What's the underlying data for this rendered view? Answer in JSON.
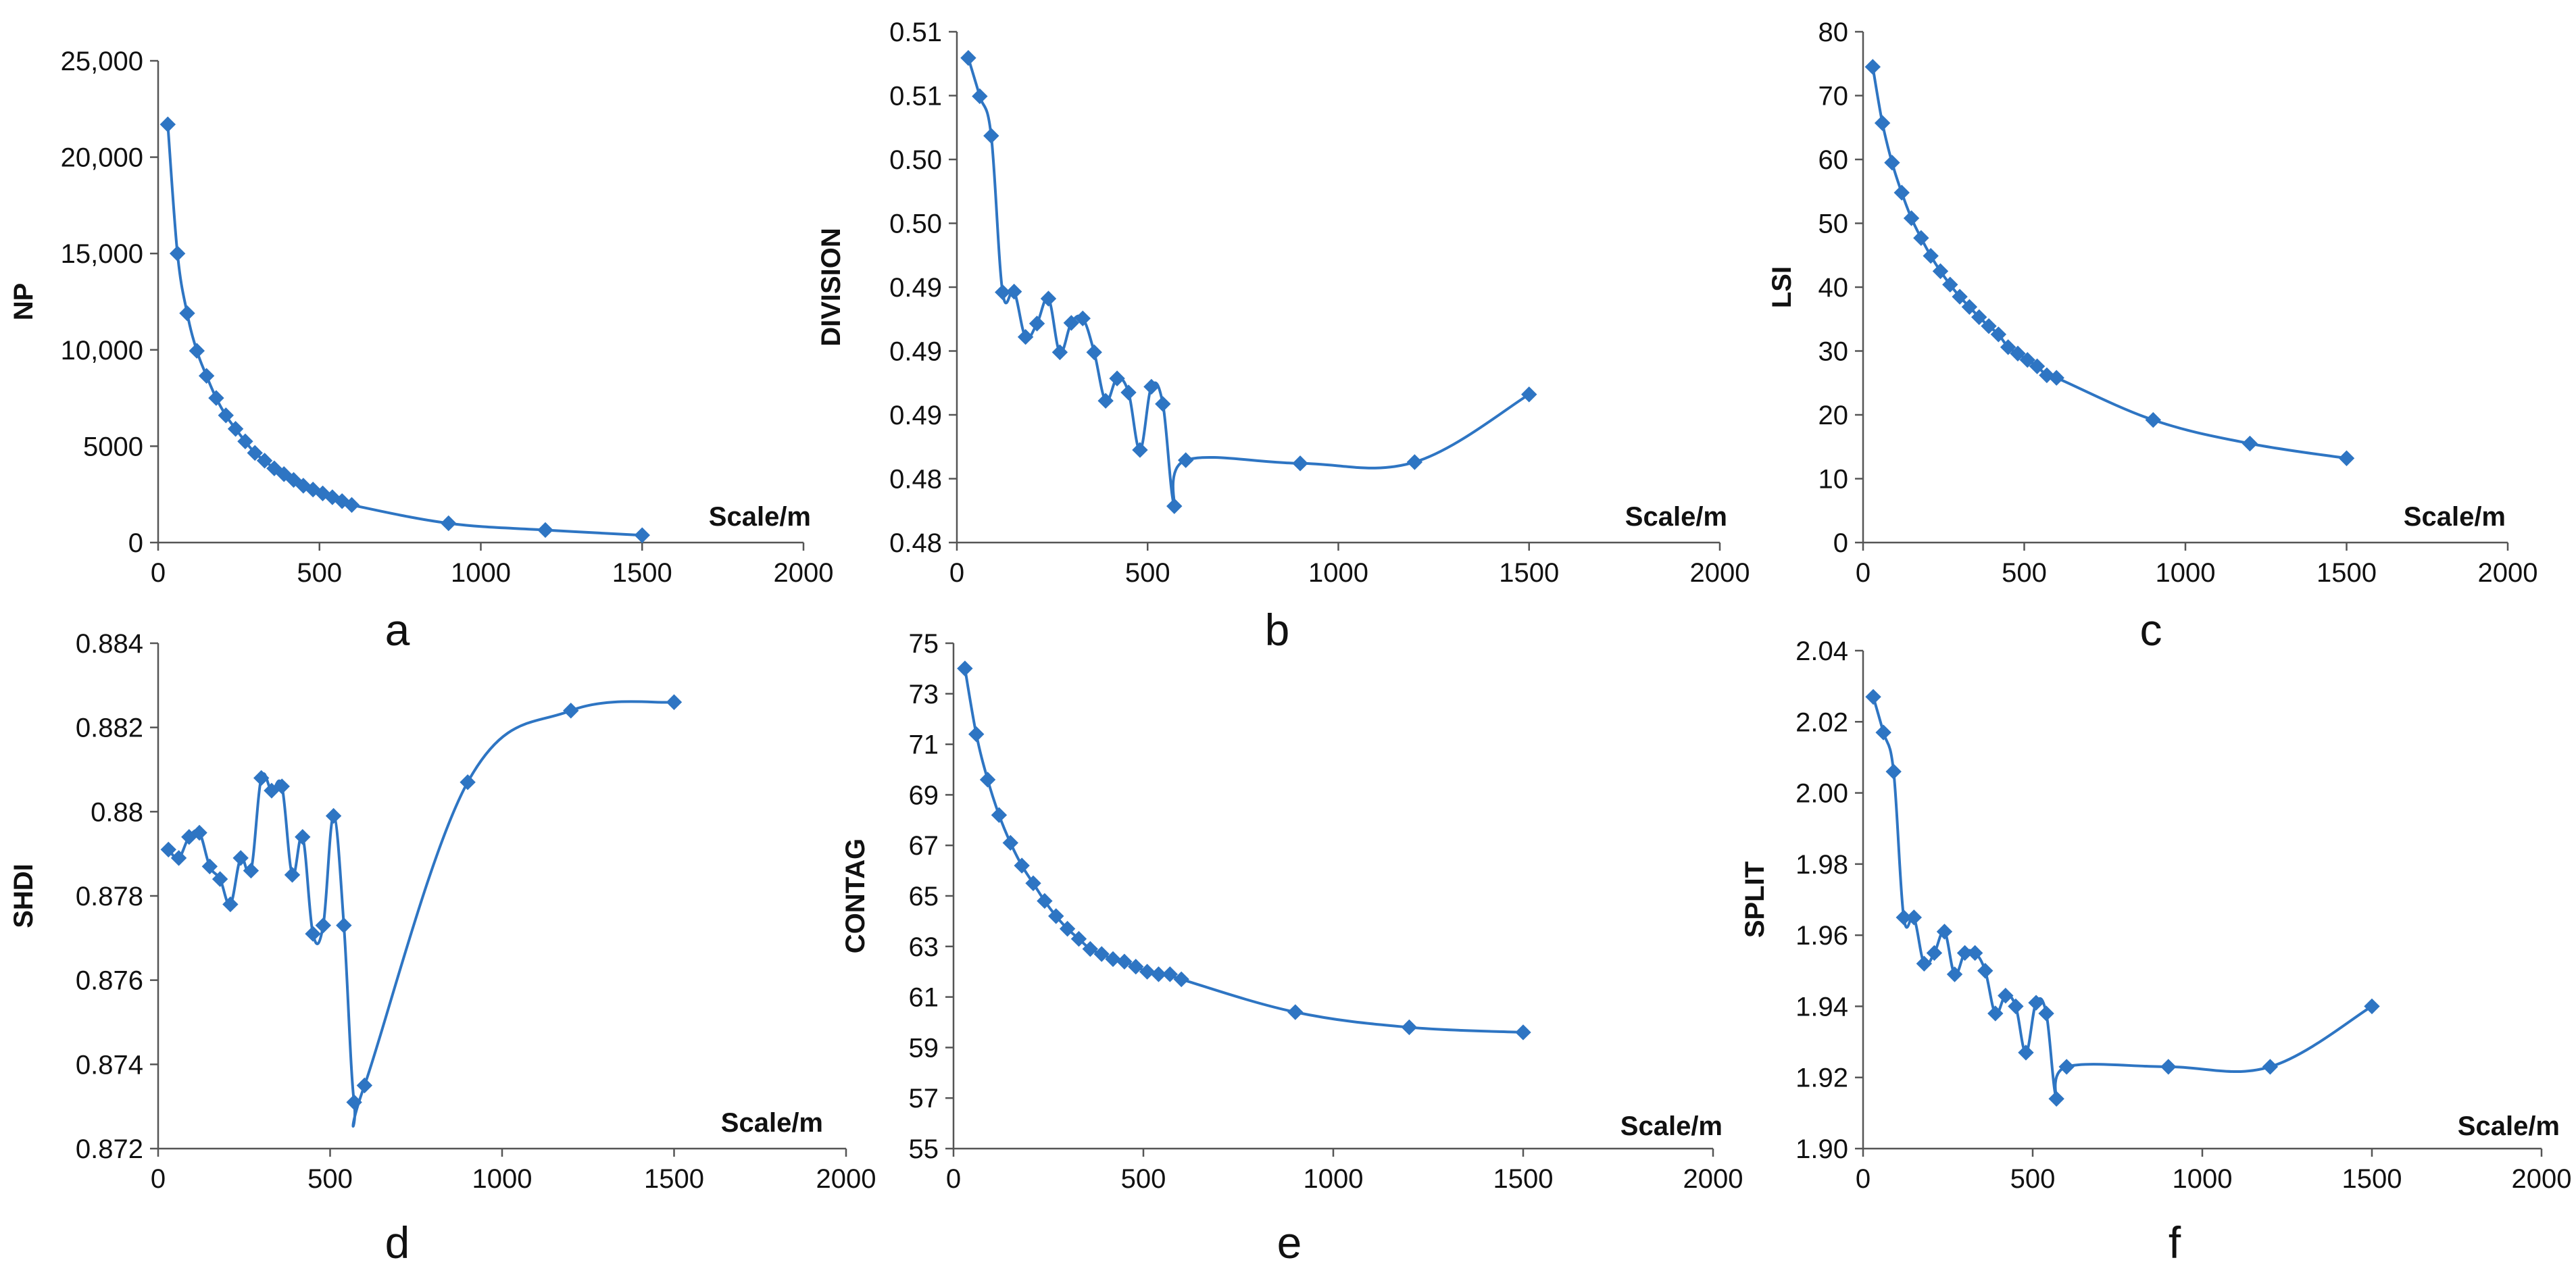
{
  "figure": {
    "series_color": "#2E75C3"
  },
  "chart_data": [
    {
      "id": "a",
      "type": "line",
      "panel_label": "a",
      "ylabel": "NP",
      "xlabel": "Scale/m",
      "xlim": [
        0,
        2000
      ],
      "xticks": [
        0,
        500,
        1000,
        1500,
        2000
      ],
      "xtick_labels": [
        "0",
        "500",
        "1000",
        "1500",
        "2000"
      ],
      "ylim": [
        0,
        25000
      ],
      "yticks": [
        0,
        5000,
        10000,
        15000,
        20000,
        25000
      ],
      "ytick_labels": [
        "0",
        "5000",
        "10,000",
        "15,000",
        "20,000",
        "25,000"
      ],
      "x": [
        30,
        60,
        90,
        120,
        150,
        180,
        210,
        240,
        270,
        300,
        330,
        360,
        390,
        420,
        450,
        480,
        510,
        540,
        570,
        600,
        900,
        1200,
        1500
      ],
      "y": [
        21700,
        15000,
        11900,
        9950,
        8650,
        7500,
        6600,
        5900,
        5250,
        4650,
        4250,
        3850,
        3550,
        3250,
        2950,
        2750,
        2550,
        2350,
        2150,
        1950,
        1000,
        650,
        380
      ]
    },
    {
      "id": "b",
      "type": "line",
      "panel_label": "b",
      "ylabel": "DIVISION",
      "xlabel": "Scale/m",
      "xlim": [
        0,
        2000
      ],
      "xticks": [
        0,
        500,
        1000,
        1500,
        2000
      ],
      "xtick_labels": [
        "0",
        "500",
        "1000",
        "1500",
        "2000"
      ],
      "ylim": [
        0,
        8
      ],
      "yticks": [
        0,
        1,
        2,
        3,
        4,
        5,
        6,
        7,
        8
      ],
      "ytick_labels": [
        "0.48",
        "0.48",
        "0.49",
        "0.49",
        "0.49",
        "0.50",
        "0.50",
        "0.51",
        "0.51"
      ],
      "x": [
        30,
        60,
        90,
        120,
        150,
        180,
        210,
        240,
        270,
        300,
        330,
        360,
        390,
        420,
        450,
        480,
        510,
        540,
        570,
        600,
        900,
        1200,
        1500
      ],
      "y": [
        7.59,
        6.99,
        6.37,
        3.92,
        3.93,
        3.22,
        3.43,
        3.82,
        2.98,
        3.44,
        3.51,
        2.98,
        2.22,
        2.57,
        2.35,
        1.45,
        2.44,
        2.17,
        0.57,
        1.29,
        1.24,
        1.26,
        2.32
      ]
    },
    {
      "id": "c",
      "type": "line",
      "panel_label": "c",
      "ylabel": "LSI",
      "xlabel": "Scale/m",
      "xlim": [
        0,
        2000
      ],
      "xticks": [
        0,
        500,
        1000,
        1500,
        2000
      ],
      "xtick_labels": [
        "0",
        "500",
        "1000",
        "1500",
        "2000"
      ],
      "ylim": [
        0,
        80
      ],
      "yticks": [
        0,
        10,
        20,
        30,
        40,
        50,
        60,
        70,
        80
      ],
      "ytick_labels": [
        "0",
        "10",
        "20",
        "30",
        "40",
        "50",
        "60",
        "70",
        "80"
      ],
      "x": [
        30,
        60,
        90,
        120,
        150,
        180,
        210,
        240,
        270,
        300,
        330,
        360,
        390,
        420,
        450,
        480,
        510,
        540,
        570,
        600,
        900,
        1200,
        1500
      ],
      "y": [
        74.5,
        65.7,
        59.5,
        54.8,
        50.8,
        47.7,
        44.9,
        42.5,
        40.4,
        38.5,
        36.9,
        35.3,
        33.9,
        32.6,
        30.6,
        29.6,
        28.6,
        27.6,
        26.2,
        25.8,
        19.2,
        15.5,
        13.2
      ]
    },
    {
      "id": "d",
      "type": "line",
      "panel_label": "d",
      "ylabel": "SHDI",
      "xlabel": "Scale/m",
      "xlim": [
        0,
        2000
      ],
      "xticks": [
        0,
        500,
        1000,
        1500,
        2000
      ],
      "xtick_labels": [
        "0",
        "500",
        "1000",
        "1500",
        "2000"
      ],
      "ylim": [
        0.872,
        0.884
      ],
      "yticks": [
        0.872,
        0.874,
        0.876,
        0.878,
        0.88,
        0.882,
        0.884
      ],
      "ytick_labels": [
        "0.872",
        "0.874",
        "0.876",
        "0.878",
        "0.88",
        "0.882",
        "0.884"
      ],
      "x": [
        30,
        60,
        90,
        120,
        150,
        180,
        210,
        240,
        270,
        300,
        330,
        360,
        390,
        420,
        450,
        480,
        510,
        540,
        570,
        600,
        900,
        1200,
        1500
      ],
      "y": [
        0.8791,
        0.8789,
        0.8794,
        0.8795,
        0.8787,
        0.8784,
        0.8778,
        0.8789,
        0.8786,
        0.8808,
        0.8805,
        0.8806,
        0.8785,
        0.8794,
        0.8771,
        0.8773,
        0.8799,
        0.8773,
        0.8731,
        0.8735,
        0.8807,
        0.8824,
        0.8826
      ]
    },
    {
      "id": "e",
      "type": "line",
      "panel_label": "e",
      "ylabel": "CONTAG",
      "xlabel": "Scale/m",
      "xlim": [
        0,
        2000
      ],
      "xticks": [
        0,
        500,
        1000,
        1500,
        2000
      ],
      "xtick_labels": [
        "0",
        "500",
        "1000",
        "1500",
        "2000"
      ],
      "ylim": [
        55,
        75
      ],
      "yticks": [
        55,
        57,
        59,
        61,
        63,
        65,
        67,
        69,
        71,
        73,
        75
      ],
      "ytick_labels": [
        "55",
        "57",
        "59",
        "61",
        "63",
        "65",
        "67",
        "69",
        "71",
        "73",
        "75"
      ],
      "x": [
        30,
        60,
        90,
        120,
        150,
        180,
        210,
        240,
        270,
        300,
        330,
        360,
        390,
        420,
        450,
        480,
        510,
        540,
        570,
        600,
        900,
        1200,
        1500
      ],
      "y": [
        74.0,
        71.4,
        69.6,
        68.2,
        67.1,
        66.2,
        65.5,
        64.8,
        64.2,
        63.7,
        63.3,
        62.9,
        62.7,
        62.5,
        62.4,
        62.2,
        62.0,
        61.9,
        61.9,
        61.7,
        60.4,
        59.8,
        59.6
      ]
    },
    {
      "id": "f",
      "type": "line",
      "panel_label": "f",
      "ylabel": "SPLIT",
      "xlabel": "Scale/m",
      "xlim": [
        0,
        2000
      ],
      "xticks": [
        0,
        500,
        1000,
        1500,
        2000
      ],
      "xtick_labels": [
        "0",
        "500",
        "1000",
        "1500",
        "2000"
      ],
      "ylim": [
        1.9,
        2.04
      ],
      "yticks": [
        1.9,
        1.92,
        1.94,
        1.96,
        1.98,
        2.0,
        2.02,
        2.04
      ],
      "ytick_labels": [
        "1.90",
        "1.92",
        "1.94",
        "1.96",
        "1.98",
        "2.00",
        "2.02",
        "2.04"
      ],
      "x": [
        30,
        60,
        90,
        120,
        150,
        180,
        210,
        240,
        270,
        300,
        330,
        360,
        390,
        420,
        450,
        480,
        510,
        540,
        570,
        600,
        900,
        1200,
        1500
      ],
      "y": [
        2.027,
        2.017,
        2.006,
        1.965,
        1.965,
        1.952,
        1.955,
        1.961,
        1.949,
        1.955,
        1.955,
        1.95,
        1.938,
        1.943,
        1.94,
        1.927,
        1.941,
        1.938,
        1.914,
        1.923,
        1.923,
        1.923,
        1.94
      ]
    }
  ]
}
